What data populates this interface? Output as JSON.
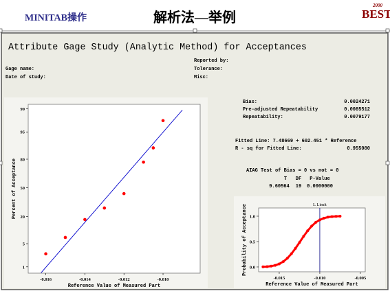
{
  "header": {
    "left": "MINITAB操作",
    "title": "解析法—举例",
    "logo": "BEST",
    "logo_sup": "2000"
  },
  "panel": {
    "title": "Attribute Gage Study (Analytic Method) for Acceptances",
    "info_left": [
      "Gage name:",
      "Date of study:"
    ],
    "info_right": [
      "Reported by:",
      "Tolerance:",
      "Misc:"
    ],
    "stats": [
      {
        "label": "Bias:",
        "value": "0.0024271"
      },
      {
        "label": "Pre-adjusted Repeatability",
        "value": "0.0085512"
      },
      {
        "label": "Repeatability:",
        "value": "0.0079177"
      }
    ],
    "fit": "Fitted Line: 7.48669 + 602.451 * Reference",
    "rsq": {
      "label": "R - sq for Fitted Line:",
      "value": "0.955080"
    },
    "test": {
      "title": "AIAG Test of Bias = 0 vs not = 0",
      "columns": [
        "T",
        "DF",
        "P-Value"
      ],
      "row": [
        "9.60564",
        "19",
        "0.0000000"
      ]
    }
  },
  "chart_data": [
    {
      "type": "scatter",
      "yscale": "probability",
      "xlabel": "Reference Value of Measured Part",
      "ylabel": "Percent of Acceptance",
      "x": [
        -0.016,
        -0.015,
        -0.014,
        -0.013,
        -0.012,
        -0.011,
        -0.0105,
        -0.01
      ],
      "values": [
        2.6,
        7.2,
        17.5,
        27.6,
        43.2,
        77.5,
        88.0,
        97.6
      ],
      "color": "#ff0000",
      "fit_line": {
        "x": [
          -0.01624,
          -0.00901
        ],
        "values": [
          0.62,
          98.9
        ],
        "color": "#0000cc"
      },
      "xlim": [
        -0.0169,
        -0.0081
      ],
      "xticks": [
        -0.016,
        -0.014,
        -0.012,
        {
          "value": -0.01,
          "label": "-0.010"
        }
      ],
      "ylim": [
        0.6,
        99.3
      ],
      "yticks": [
        1,
        5,
        20,
        50,
        80,
        95,
        99
      ]
    },
    {
      "type": "line",
      "xlabel": "Reference Value of Measured Part",
      "ylabel": "Probability of Acceptance",
      "x": [
        -0.017,
        -0.0165,
        -0.016,
        -0.0155,
        -0.015,
        -0.0145,
        -0.014,
        -0.0135,
        -0.013,
        -0.0125,
        -0.012,
        -0.0115,
        -0.011,
        -0.0105,
        -0.01,
        -0.0095,
        -0.009,
        -0.0085,
        -0.008,
        -0.0075
      ],
      "values": [
        0.003,
        0.007,
        0.016,
        0.032,
        0.061,
        0.106,
        0.172,
        0.259,
        0.366,
        0.483,
        0.602,
        0.712,
        0.805,
        0.878,
        0.928,
        0.961,
        0.981,
        0.991,
        0.996,
        0.999
      ],
      "color": "#ff0000",
      "limit": {
        "x": -0.01,
        "label": "L Limit",
        "color": "#000080"
      },
      "xlim": [
        -0.01754,
        -0.0044
      ],
      "xticks": [
        -0.015,
        {
          "value": -0.01,
          "label": "-0.010"
        },
        -0.005
      ],
      "ylim": [
        -0.095,
        1.162
      ],
      "yticks": [
        {
          "value": 0,
          "label": "0.0"
        },
        0.5,
        {
          "value": 1,
          "label": "1.0"
        }
      ]
    }
  ]
}
